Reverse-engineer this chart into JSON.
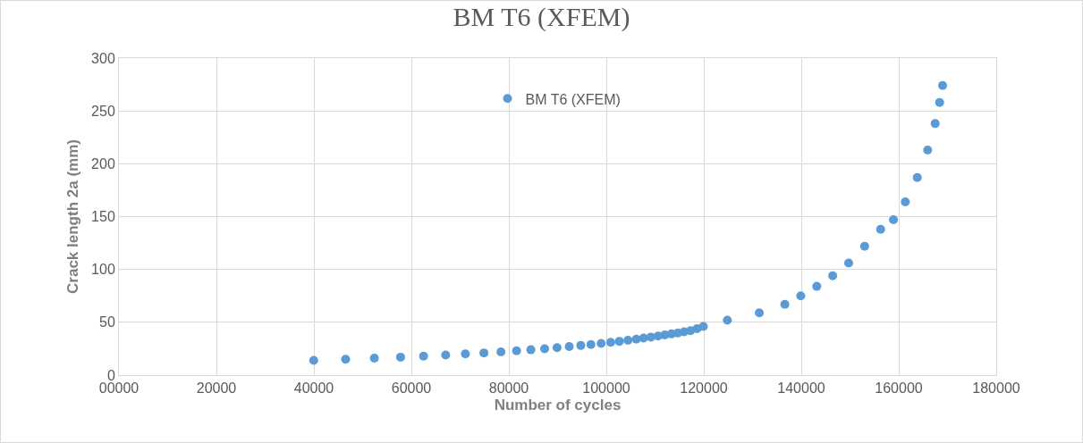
{
  "chart_data": {
    "type": "scatter",
    "title": "BM T6 (XFEM)",
    "xlabel": "Number of cycles",
    "ylabel": "Crack length 2a (mm)",
    "x": [
      39960,
      46510,
      52400,
      57780,
      62500,
      67030,
      71080,
      74880,
      78370,
      81580,
      84510,
      87340,
      89890,
      92390,
      94760,
      96840,
      98940,
      100900,
      102680,
      104440,
      106150,
      107650,
      109160,
      110610,
      111990,
      113360,
      114670,
      115970,
      117280,
      118600,
      119910,
      124830,
      131380,
      136620,
      139890,
      143170,
      146440,
      149720,
      153000,
      156280,
      158900,
      161340,
      163800,
      165930,
      167470,
      168380,
      168990
    ],
    "series": [
      {
        "name": "BM T6 (XFEM)",
        "color": "#5b9bd5",
        "values": [
          14,
          15,
          16,
          17,
          18,
          19,
          20,
          21,
          22,
          23,
          24,
          25,
          26,
          27,
          28,
          29,
          30,
          31,
          32,
          33,
          34,
          35,
          36,
          37,
          38,
          39,
          40,
          41,
          42,
          44,
          46,
          52,
          59,
          67,
          75,
          84,
          94,
          106,
          122,
          138,
          147,
          164,
          187,
          213,
          238,
          258,
          274
        ]
      }
    ],
    "xlim": [
      0,
      180000
    ],
    "xticks": [
      {
        "value": 0,
        "label": "00000"
      },
      20000,
      40000,
      60000,
      80000,
      100000,
      120000,
      140000,
      160000,
      180000
    ],
    "ylim": [
      0,
      300
    ],
    "yticks": [
      0,
      50,
      100,
      150,
      200,
      250,
      300
    ],
    "grid": true,
    "legend": "top",
    "marker": "circle"
  }
}
